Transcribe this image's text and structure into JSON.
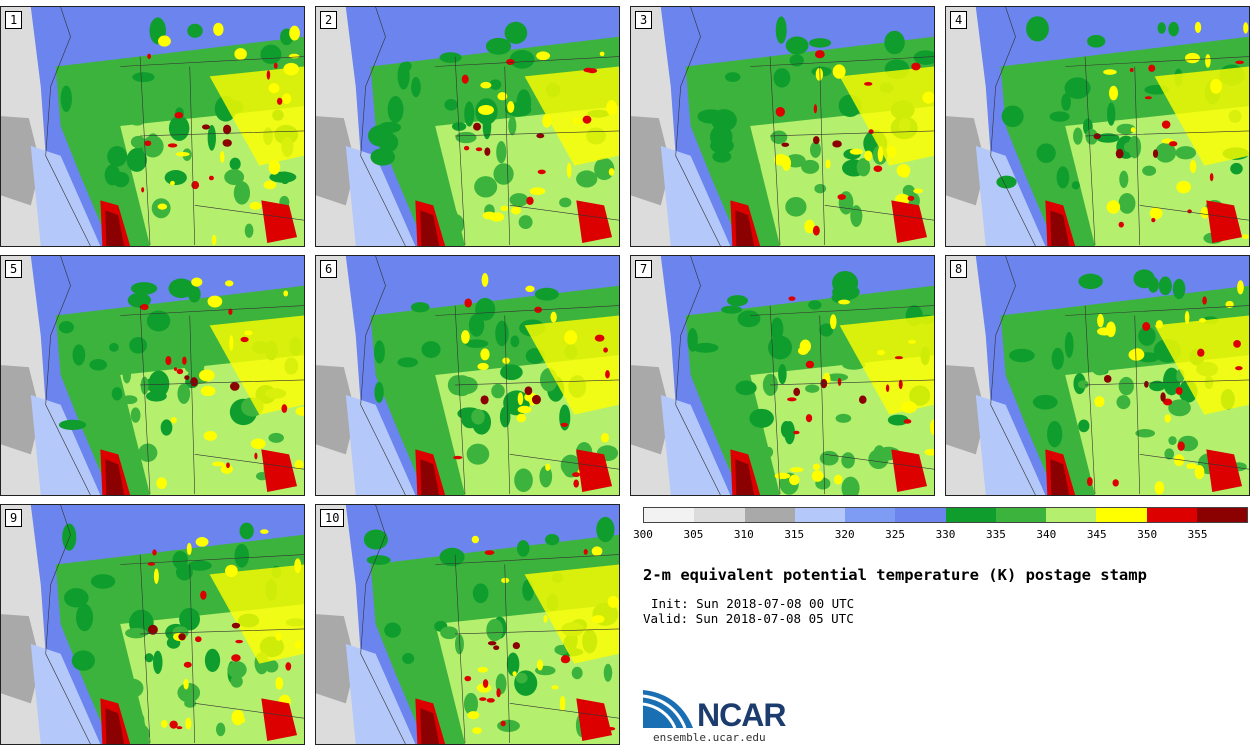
{
  "title": "2-m equivalent potential temperature (K) postage stamp",
  "init": "Init: Sun 2018-07-08 00 UTC",
  "valid": "Valid: Sun 2018-07-08 05 UTC",
  "site": "ensemble.ucar.edu",
  "logo_text": "NCAR",
  "members": [
    "1",
    "2",
    "3",
    "4",
    "5",
    "6",
    "7",
    "8",
    "9",
    "10"
  ],
  "colorbar": {
    "ticks": [
      "300",
      "305",
      "310",
      "315",
      "320",
      "325",
      "330",
      "335",
      "340",
      "345",
      "350",
      "355"
    ],
    "colors": [
      "#f2f2f2",
      "#dcdcdc",
      "#a9a9a9",
      "#b4c8fa",
      "#7f9cf5",
      "#6b84ee",
      "#0f9e2e",
      "#3cb33c",
      "#b4f06e",
      "#ffff00",
      "#dc0000",
      "#8b0000"
    ]
  }
}
